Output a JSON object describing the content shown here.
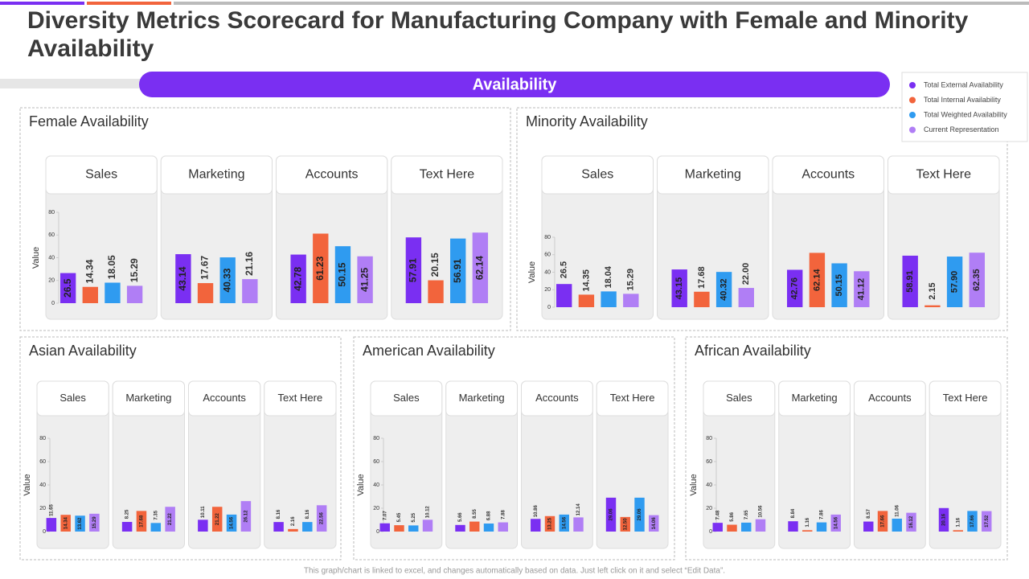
{
  "title": "Diversity Metrics Scorecard for Manufacturing Company with Female and Minority Availability",
  "banner": "Availability",
  "footer": "This graph/chart is linked to excel, and changes automatically based on data. Just left click on it and select “Edit Data”.",
  "chart_data": [
    {
      "type": "bar",
      "title": "Female Availability",
      "y_label": "Value",
      "categories": [
        "Sales",
        "Marketing",
        "Accounts",
        "Text Here"
      ],
      "ylim": [
        0,
        80
      ],
      "yticks": [
        0,
        20,
        40,
        60,
        80
      ],
      "series": [
        {
          "name": "Total External Availability",
          "color": "#7a2ff2",
          "values": [
            26.5,
            43.14,
            42.78,
            57.91
          ]
        },
        {
          "name": "Total Internal Availability",
          "color": "#f2643c",
          "values": [
            14.34,
            17.67,
            61.23,
            20.15
          ]
        },
        {
          "name": "Total Weighted Availability",
          "color": "#2f9bf0",
          "values": [
            18.05,
            40.33,
            50.15,
            56.91
          ]
        },
        {
          "name": "Current Representation",
          "color": "#b07ef5",
          "values": [
            15.29,
            21.16,
            41.25,
            62.14
          ]
        }
      ]
    },
    {
      "type": "bar",
      "title": "Minority Availability",
      "y_label": "Value",
      "categories": [
        "Sales",
        "Marketing",
        "Accounts",
        "Text Here"
      ],
      "ylim": [
        0,
        80
      ],
      "yticks": [
        0,
        20,
        40,
        60,
        80
      ],
      "series": [
        {
          "name": "Total External Availability",
          "color": "#7a2ff2",
          "values": [
            26.5,
            43.15,
            42.76,
            58.91
          ]
        },
        {
          "name": "Total Internal Availability",
          "color": "#f2643c",
          "values": [
            14.35,
            17.68,
            62.14,
            2.15
          ]
        },
        {
          "name": "Total Weighted Availability",
          "color": "#2f9bf0",
          "values": [
            18.04,
            40.32,
            50.15,
            57.9
          ],
          "value_labels": [
            "18.04",
            "40.32",
            "50.15",
            "57.90"
          ]
        },
        {
          "name": "Current Representation",
          "color": "#b07ef5",
          "values": [
            15.29,
            22,
            41.12,
            62.35
          ],
          "value_labels": [
            "15.29",
            "22.00",
            "41.12",
            "62.35"
          ]
        }
      ]
    },
    {
      "type": "bar",
      "title": "Asian Availability",
      "y_label": "Value",
      "categories": [
        "Sales",
        "Marketing",
        "Accounts",
        "Text Here"
      ],
      "ylim": [
        0,
        80
      ],
      "yticks": [
        0,
        20,
        40,
        60,
        80
      ],
      "series": [
        {
          "name": "Total External Availability",
          "color": "#7a2ff2",
          "values": [
            11.65,
            8.25,
            10.11,
            8.16
          ]
        },
        {
          "name": "Total Internal Availability",
          "color": "#f2643c",
          "values": [
            14.34,
            17.68,
            21.22,
            2.16
          ]
        },
        {
          "name": "Total Weighted Availability",
          "color": "#2f9bf0",
          "values": [
            13.62,
            7.35,
            14.56,
            8.16
          ]
        },
        {
          "name": "Current Representation",
          "color": "#b07ef5",
          "values": [
            15.29,
            21.22,
            26.12,
            22.56
          ]
        }
      ]
    },
    {
      "type": "bar",
      "title": "American Availability",
      "y_label": "Value",
      "categories": [
        "Sales",
        "Marketing",
        "Accounts",
        "Text Here"
      ],
      "ylim": [
        0,
        80
      ],
      "yticks": [
        0,
        20,
        40,
        60,
        80
      ],
      "series": [
        {
          "name": "Total External Availability",
          "color": "#7a2ff2",
          "values": [
            7.07,
            5.66,
            10.86,
            29.06
          ]
        },
        {
          "name": "Total Internal Availability",
          "color": "#f2643c",
          "values": [
            5.45,
            8.55,
            13.25,
            12.5
          ],
          "value_labels": [
            "5.45",
            "8.55",
            "13.25",
            "12.50"
          ]
        },
        {
          "name": "Total Weighted Availability",
          "color": "#2f9bf0",
          "values": [
            5.25,
            6.88,
            14.56,
            29.06
          ]
        },
        {
          "name": "Current Representation",
          "color": "#b07ef5",
          "values": [
            10.12,
            7.88,
            12.14,
            14.06
          ]
        }
      ]
    },
    {
      "type": "bar",
      "title": "African Availability",
      "y_label": "Value",
      "categories": [
        "Sales",
        "Marketing",
        "Accounts",
        "Text Here"
      ],
      "ylim": [
        0,
        80
      ],
      "yticks": [
        0,
        20,
        40,
        60,
        80
      ],
      "series": [
        {
          "name": "Total External Availability",
          "color": "#7a2ff2",
          "values": [
            7.48,
            8.84,
            8.57,
            20.16
          ]
        },
        {
          "name": "Total Internal Availability",
          "color": "#f2643c",
          "values": [
            5.86,
            1.16,
            17.66,
            1.16
          ]
        },
        {
          "name": "Total Weighted Availability",
          "color": "#2f9bf0",
          "values": [
            7.65,
            7.86,
            11.06,
            17.66
          ]
        },
        {
          "name": "Current Representation",
          "color": "#b07ef5",
          "values": [
            10.56,
            14.56,
            16.12,
            17.52
          ]
        }
      ]
    }
  ]
}
